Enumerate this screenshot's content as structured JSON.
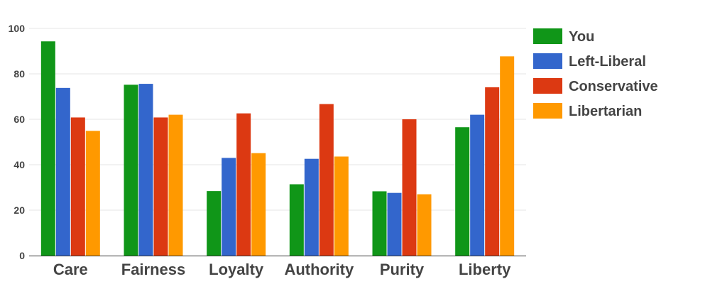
{
  "chart_data": {
    "type": "bar",
    "categories": [
      "Care",
      "Fairness",
      "Loyalty",
      "Authority",
      "Purity",
      "Liberty"
    ],
    "series": [
      {
        "name": "You",
        "color": "#109618",
        "values": [
          94.3,
          75.2,
          28.4,
          31.4,
          28.3,
          56.5
        ]
      },
      {
        "name": "Left-Liberal",
        "color": "#3366cc",
        "values": [
          73.8,
          75.6,
          43.0,
          42.6,
          27.6,
          62.0
        ]
      },
      {
        "name": "Conservative",
        "color": "#dc3912",
        "values": [
          60.8,
          60.8,
          62.6,
          66.7,
          60.0,
          74.1
        ]
      },
      {
        "name": "Libertarian",
        "color": "#ff9900",
        "values": [
          54.9,
          62.0,
          45.1,
          43.6,
          27.0,
          87.7
        ]
      }
    ],
    "ylim": [
      0,
      100
    ],
    "yticks": [
      "0",
      "20",
      "40",
      "60",
      "80",
      "100"
    ],
    "grid": true,
    "legend": "right",
    "title": "",
    "xlabel": "",
    "ylabel": ""
  }
}
